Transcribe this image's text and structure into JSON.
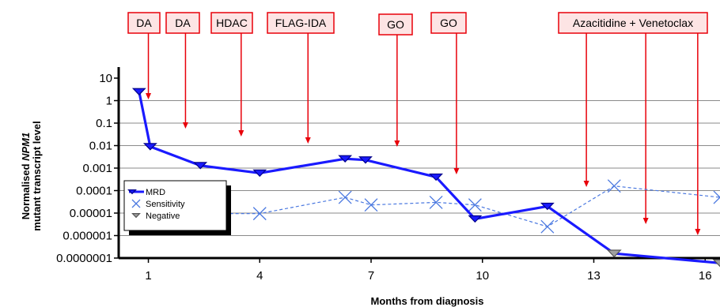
{
  "chart_data": {
    "type": "line",
    "title": "",
    "xlabel": "Months from diagnosis",
    "ylabel_line1_pre": "Normalised ",
    "ylabel_line1_italic": "NPM1",
    "ylabel_line2": "mutant transcript level",
    "y_scale": "log",
    "ylim": [
      1e-07,
      10
    ],
    "xlim": [
      0.2,
      16.4
    ],
    "x_ticks": [
      1,
      4,
      7,
      10,
      13,
      16
    ],
    "y_ticks": [
      {
        "value": 10,
        "label": "10"
      },
      {
        "value": 1,
        "label": "1"
      },
      {
        "value": 0.1,
        "label": "0.1"
      },
      {
        "value": 0.01,
        "label": "0.01"
      },
      {
        "value": 0.001,
        "label": "0.001"
      },
      {
        "value": 0.0001,
        "label": "0.0001"
      },
      {
        "value": 1e-05,
        "label": "0.00001"
      },
      {
        "value": 1e-06,
        "label": "0.000001"
      },
      {
        "value": 1e-07,
        "label": "0.0000001"
      }
    ],
    "grid": "horizontal",
    "legend_position": "left",
    "series": [
      {
        "name": "MRD",
        "color": "#1a1aff",
        "style": "solid-thick",
        "marker": "down-triangle",
        "points": [
          {
            "x": 0.75,
            "y": 2.5
          },
          {
            "x": 1.05,
            "y": 0.009
          },
          {
            "x": 2.4,
            "y": 0.0013
          },
          {
            "x": 4.0,
            "y": 0.0006
          },
          {
            "x": 6.3,
            "y": 0.0026
          },
          {
            "x": 6.85,
            "y": 0.0023
          },
          {
            "x": 8.75,
            "y": 0.0004
          },
          {
            "x": 9.8,
            "y": 5.5e-06
          },
          {
            "x": 11.75,
            "y": 2e-05
          },
          {
            "x": 13.55,
            "y": 1.6e-07
          },
          {
            "x": 16.4,
            "y": 6e-08
          }
        ]
      },
      {
        "name": "Sensitivity",
        "color": "#4a78e0",
        "style": "dashed",
        "marker": "x",
        "line_start": {
          "x": 2.9,
          "y": 9.5e-06
        },
        "points": [
          {
            "x": 4.0,
            "y": 9.5e-06
          },
          {
            "x": 6.3,
            "y": 5e-05
          },
          {
            "x": 7.0,
            "y": 2.3e-05
          },
          {
            "x": 8.75,
            "y": 3e-05
          },
          {
            "x": 9.8,
            "y": 2.3e-05
          },
          {
            "x": 11.75,
            "y": 2.5e-06
          },
          {
            "x": 13.55,
            "y": 0.00016
          },
          {
            "x": 16.4,
            "y": 5e-05
          }
        ]
      },
      {
        "name": "Negative",
        "color": "#a0a0a0",
        "marker": "down-triangle",
        "points": [
          {
            "x": 13.55,
            "y": 1.6e-07
          },
          {
            "x": 16.4,
            "y": 6e-08
          }
        ]
      }
    ],
    "treatments": [
      {
        "label": "DA",
        "x": 1.0
      },
      {
        "label": "DA",
        "x": 2.0
      },
      {
        "label": "HDAC",
        "x": 3.5
      },
      {
        "label": "FLAG-IDA",
        "x": 5.3
      },
      {
        "label": "GO",
        "x": 7.7
      },
      {
        "label": "GO",
        "x": 9.3
      },
      {
        "label": "Azacitidine + Venetoclax",
        "x": [
          12.8,
          14.4,
          15.8
        ]
      }
    ],
    "treatment_color": "#e8000a",
    "treatment_box_fill": "#fde4e4"
  }
}
